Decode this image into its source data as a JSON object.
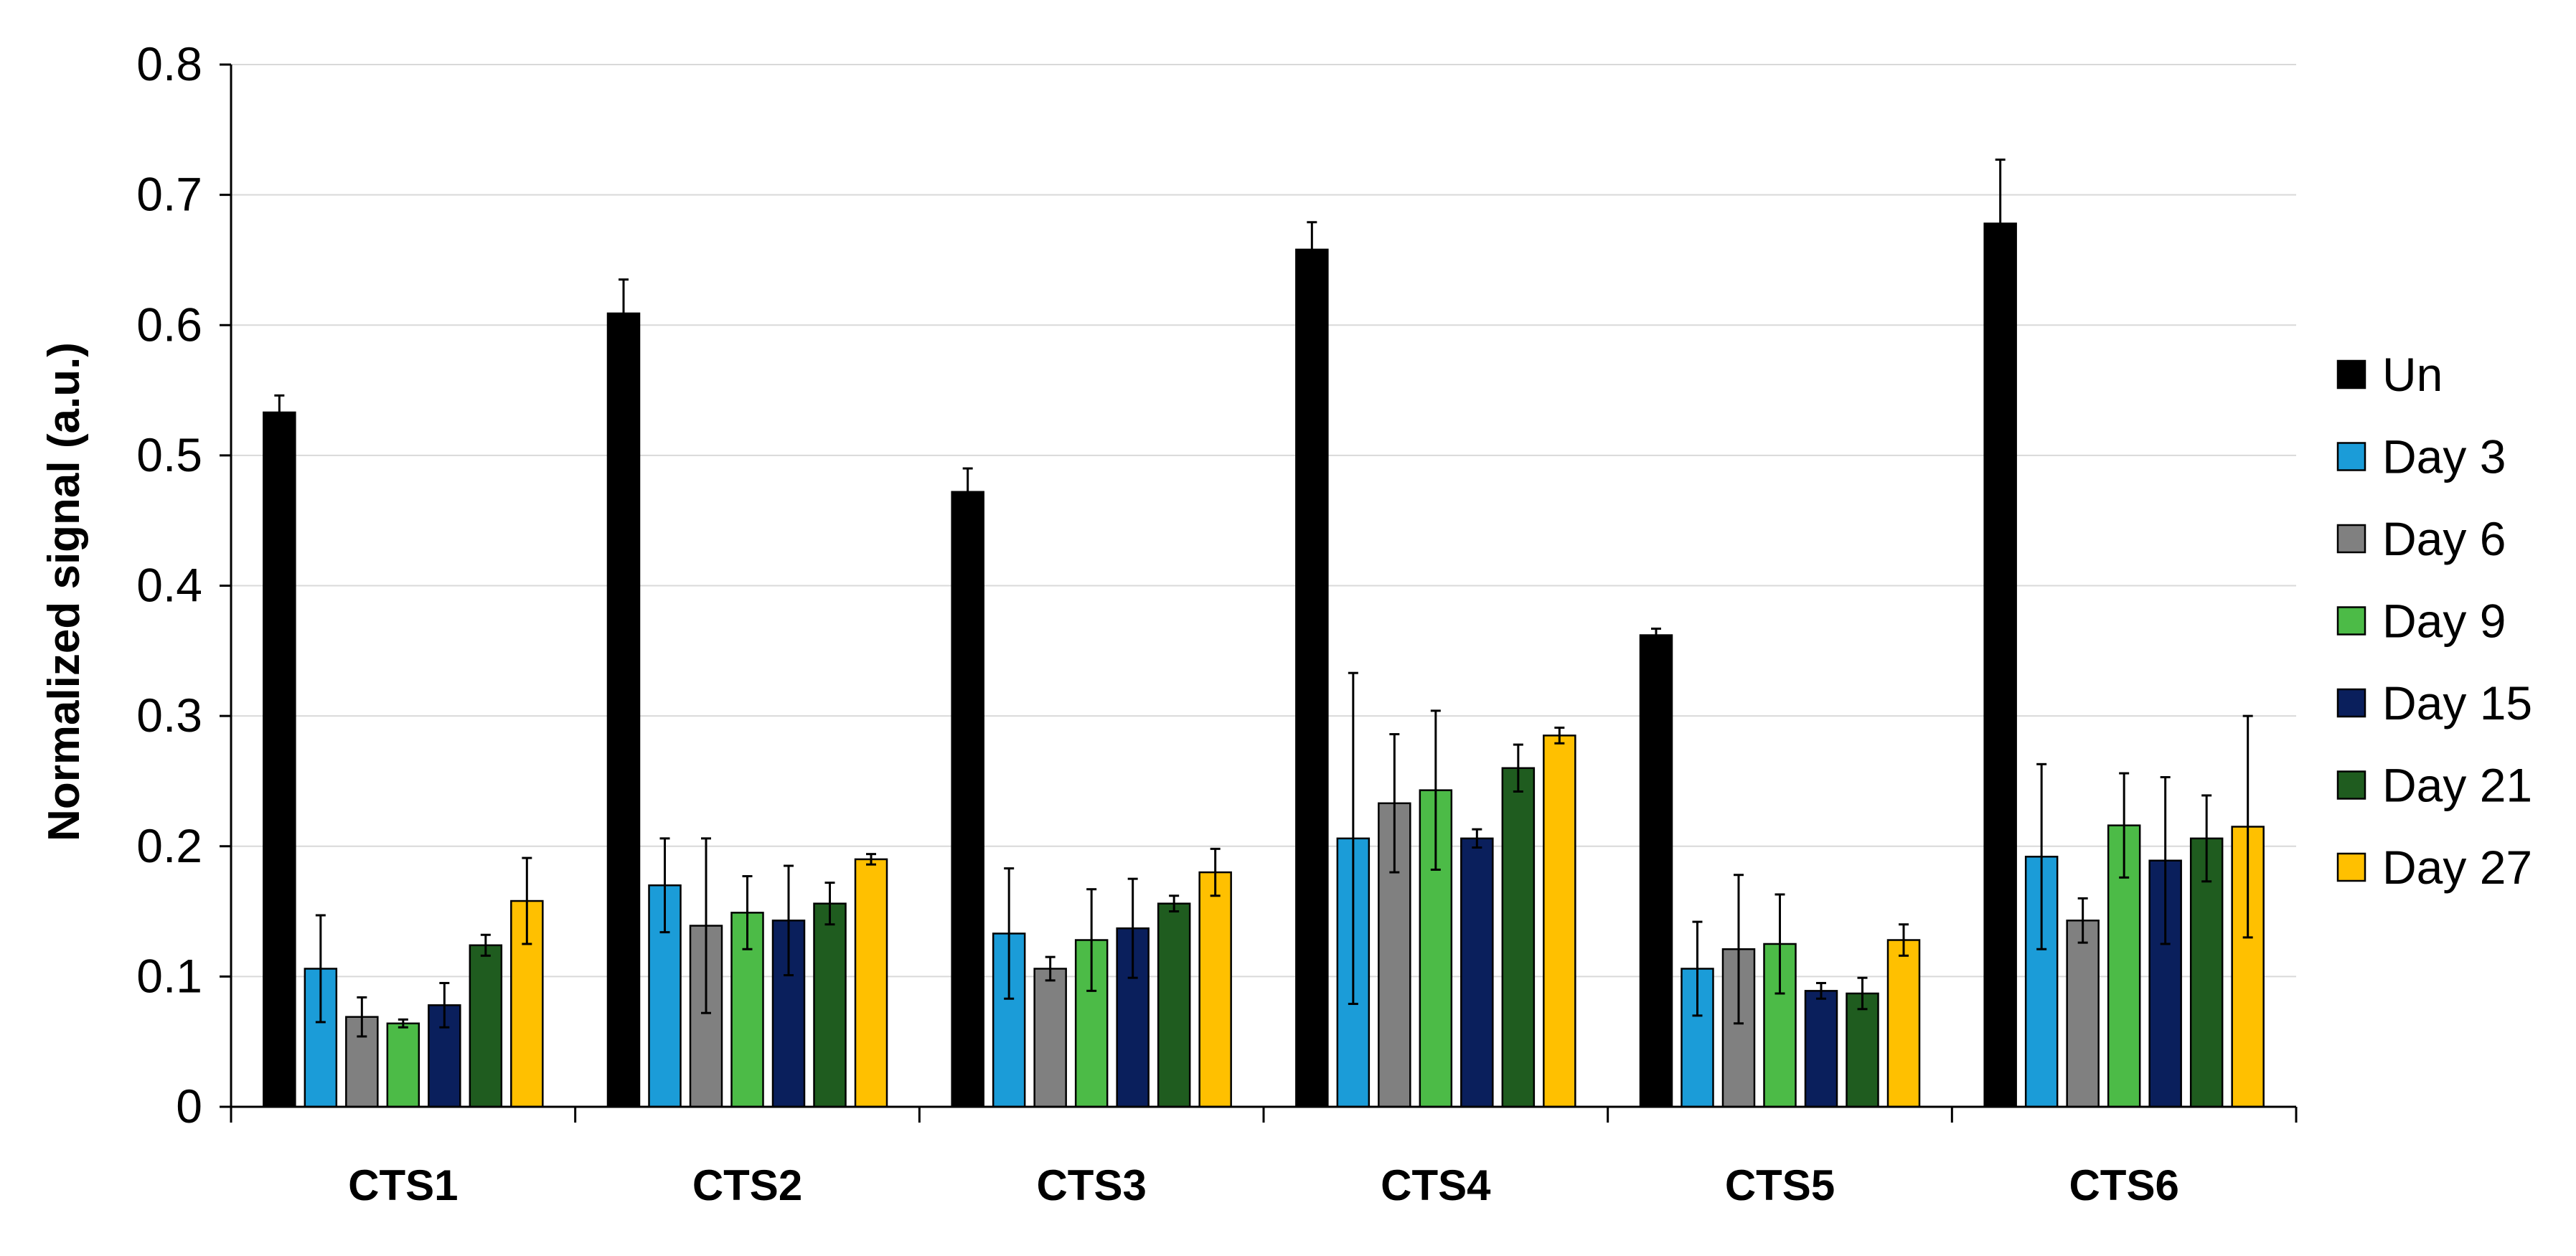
{
  "chart_data": {
    "type": "bar",
    "title": "",
    "xlabel": "",
    "ylabel": "Normalized signal (a.u.)",
    "ylim": [
      0,
      0.8
    ],
    "yticks": [
      "0",
      "0.1",
      "0.2",
      "0.3",
      "0.4",
      "0.5",
      "0.6",
      "0.7",
      "0.8"
    ],
    "grid": true,
    "legend_position": "right",
    "categories": [
      "CTS1",
      "CTS2",
      "CTS3",
      "CTS4",
      "CTS5",
      "CTS6"
    ],
    "series": [
      {
        "name": "Un",
        "color": "#000000",
        "values": [
          0.533,
          0.609,
          0.472,
          0.658,
          0.362,
          0.678
        ],
        "errors": [
          0.013,
          0.026,
          0.018,
          0.021,
          0.005,
          0.049
        ]
      },
      {
        "name": "Day 3",
        "color": "#1B9CD8",
        "values": [
          0.106,
          0.17,
          0.133,
          0.206,
          0.106,
          0.192
        ],
        "errors": [
          0.041,
          0.036,
          0.05,
          0.127,
          0.036,
          0.071
        ]
      },
      {
        "name": "Day 6",
        "color": "#808080",
        "values": [
          0.069,
          0.139,
          0.106,
          0.233,
          0.121,
          0.143
        ],
        "errors": [
          0.015,
          0.067,
          0.009,
          0.053,
          0.057,
          0.017
        ]
      },
      {
        "name": "Day 9",
        "color": "#4CBB47",
        "values": [
          0.064,
          0.149,
          0.128,
          0.243,
          0.125,
          0.216
        ],
        "errors": [
          0.003,
          0.028,
          0.039,
          0.061,
          0.038,
          0.04
        ]
      },
      {
        "name": "Day 15",
        "color": "#0A1F5C",
        "values": [
          0.078,
          0.143,
          0.137,
          0.206,
          0.089,
          0.189
        ],
        "errors": [
          0.017,
          0.042,
          0.038,
          0.007,
          0.006,
          0.064
        ]
      },
      {
        "name": "Day 21",
        "color": "#1F5C1F",
        "values": [
          0.124,
          0.156,
          0.156,
          0.26,
          0.087,
          0.206
        ],
        "errors": [
          0.008,
          0.016,
          0.006,
          0.018,
          0.012,
          0.033
        ]
      },
      {
        "name": "Day 27",
        "color": "#FFC000",
        "values": [
          0.158,
          0.19,
          0.18,
          0.285,
          0.128,
          0.215
        ],
        "errors": [
          0.033,
          0.004,
          0.018,
          0.006,
          0.012,
          0.085
        ]
      }
    ]
  }
}
